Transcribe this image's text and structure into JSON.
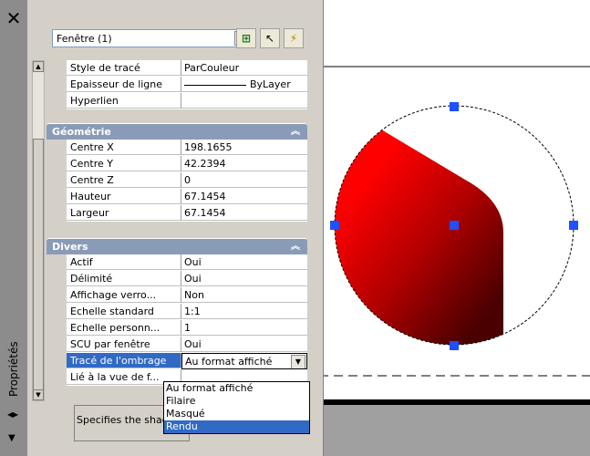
{
  "palette": {
    "title": "Propriétés",
    "object_selector": {
      "value": "Fenêtre (1)"
    },
    "description": "Specifies the shade plo",
    "sections": {
      "general_rows": [
        {
          "label": "Style de tracé",
          "value": "ParCouleur"
        },
        {
          "label": "Epaisseur de ligne",
          "value": "ByLayer"
        },
        {
          "label": "Hyperlien",
          "value": ""
        }
      ],
      "geometry": {
        "title": "Géométrie",
        "rows": [
          {
            "label": "Centre X",
            "value": "198.1655"
          },
          {
            "label": "Centre Y",
            "value": "42.2394"
          },
          {
            "label": "Centre Z",
            "value": "0"
          },
          {
            "label": "Hauteur",
            "value": "67.1454"
          },
          {
            "label": "Largeur",
            "value": "67.1454"
          }
        ]
      },
      "misc": {
        "title": "Divers",
        "rows": [
          {
            "label": "Actif",
            "value": "Oui"
          },
          {
            "label": "Délimité",
            "value": "Oui"
          },
          {
            "label": "Affichage verro...",
            "value": "Non"
          },
          {
            "label": "Echelle standard",
            "value": "1:1"
          },
          {
            "label": "Echelle personn...",
            "value": "1"
          },
          {
            "label": "SCU par fenêtre",
            "value": "Oui"
          },
          {
            "label": "Tracé de l'ombrage",
            "value": "Au format affiché"
          },
          {
            "label": "Lié à la vue de f...",
            "value": ""
          }
        ]
      }
    },
    "shade_plot_options": [
      "Au format affiché",
      "Filaire",
      "Masqué",
      "Rendu"
    ]
  },
  "colors": {
    "selection_blue": "#316ac5",
    "section_header": "#8a9bb8",
    "grip_blue": "#1f4fff",
    "shape_red": "#ff0000",
    "shape_dark": "#5a0000"
  }
}
